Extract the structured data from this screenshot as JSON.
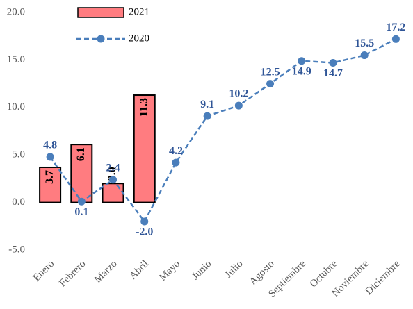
{
  "chart_data": {
    "type": "bar_line",
    "categories": [
      "Enero",
      "Febrero",
      "Marzo",
      "Abril",
      "Mayo",
      "Junio",
      "Julio",
      "Agosto",
      "Septiembre",
      "Octubre",
      "Noviembre",
      "Diciembre"
    ],
    "series": [
      {
        "name": "2021",
        "type": "bar",
        "color": "#ff7c80",
        "values": [
          3.7,
          6.1,
          2.0,
          11.3,
          null,
          null,
          null,
          null,
          null,
          null,
          null,
          null
        ],
        "value_labels": [
          "3.7",
          "6.1",
          "2.0",
          "11.3",
          null,
          null,
          null,
          null,
          null,
          null,
          null,
          null
        ]
      },
      {
        "name": "2020",
        "type": "line",
        "color": "#4a7ebb",
        "values": [
          4.8,
          0.1,
          2.4,
          -2.0,
          4.2,
          9.1,
          10.2,
          12.5,
          14.9,
          14.7,
          15.5,
          17.2
        ],
        "value_labels": [
          "4.8",
          "0.1",
          "2.4",
          "-2.0",
          "4.2",
          "9.1",
          "10.2",
          "12.5",
          "14.9",
          "14.7",
          "15.5",
          "17.2"
        ]
      }
    ],
    "ylim": [
      -5,
      20
    ],
    "yticks": [
      {
        "value": -5,
        "label": "-5.0"
      },
      {
        "value": 0,
        "label": "0.0"
      },
      {
        "value": 5,
        "label": "5.0"
      },
      {
        "value": 10,
        "label": "10.0"
      },
      {
        "value": 15,
        "label": "15.0"
      },
      {
        "value": 20,
        "label": "20.0"
      }
    ],
    "legend": "top-left"
  }
}
